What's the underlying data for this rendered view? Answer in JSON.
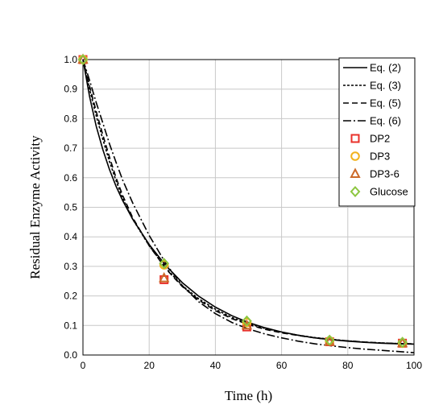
{
  "chart_data": {
    "type": "line",
    "xlabel": "Time (h)",
    "ylabel": "Residual Enzyme Activity",
    "xlim": [
      0,
      100
    ],
    "ylim": [
      0,
      1.0
    ],
    "x_ticks": [
      "0",
      "20",
      "40",
      "60",
      "80",
      "100"
    ],
    "y_ticks": [
      "0.0",
      "0.1",
      "0.2",
      "0.3",
      "0.4",
      "0.5",
      "0.6",
      "0.7",
      "0.8",
      "0.9",
      "1.0"
    ],
    "grid": true,
    "legend_position": "top-right",
    "lines": [
      {
        "name": "Eq. (2)",
        "dash": "solid",
        "x": [
          0,
          2,
          4,
          6,
          8,
          10,
          12,
          15,
          20,
          25,
          30,
          35,
          40,
          45,
          50,
          55,
          60,
          65,
          70,
          75,
          80,
          85,
          90,
          95,
          100
        ],
        "y": [
          1.0,
          0.875,
          0.775,
          0.695,
          0.628,
          0.571,
          0.523,
          0.46,
          0.374,
          0.303,
          0.245,
          0.199,
          0.162,
          0.133,
          0.11,
          0.092,
          0.078,
          0.067,
          0.058,
          0.052,
          0.047,
          0.043,
          0.04,
          0.038,
          0.037
        ]
      },
      {
        "name": "Eq. (3)",
        "dash": "dotted",
        "x": [
          0,
          2,
          4,
          6,
          8,
          10,
          12,
          15,
          20,
          25,
          30,
          35,
          40,
          45,
          50,
          55,
          60,
          65,
          70,
          75,
          80,
          85,
          90,
          95,
          100
        ],
        "y": [
          1.0,
          0.9,
          0.81,
          0.73,
          0.655,
          0.59,
          0.53,
          0.46,
          0.37,
          0.295,
          0.235,
          0.19,
          0.155,
          0.127,
          0.106,
          0.09,
          0.077,
          0.067,
          0.059,
          0.053,
          0.048,
          0.044,
          0.041,
          0.039,
          0.037
        ]
      },
      {
        "name": "Eq. (5)",
        "dash": "dashed",
        "x": [
          0,
          2,
          4,
          6,
          8,
          10,
          12,
          15,
          20,
          25,
          30,
          35,
          40,
          45,
          50,
          55,
          60,
          65,
          70,
          75,
          80,
          85,
          90,
          95,
          100
        ],
        "y": [
          1.0,
          0.91,
          0.825,
          0.745,
          0.67,
          0.6,
          0.54,
          0.465,
          0.37,
          0.292,
          0.232,
          0.186,
          0.15,
          0.123,
          0.103,
          0.087,
          0.075,
          0.066,
          0.058,
          0.052,
          0.048,
          0.044,
          0.041,
          0.039,
          0.038
        ]
      },
      {
        "name": "Eq. (6)",
        "dash": "dashdot",
        "x": [
          0,
          2,
          4,
          6,
          8,
          10,
          12,
          15,
          20,
          25,
          30,
          35,
          40,
          45,
          50,
          55,
          60,
          65,
          70,
          75,
          80,
          85,
          90,
          95,
          100
        ],
        "y": [
          1.0,
          0.93,
          0.855,
          0.785,
          0.715,
          0.652,
          0.592,
          0.515,
          0.405,
          0.31,
          0.235,
          0.18,
          0.14,
          0.11,
          0.088,
          0.071,
          0.058,
          0.047,
          0.038,
          0.031,
          0.025,
          0.02,
          0.016,
          0.012,
          0.008
        ]
      }
    ],
    "markers": [
      {
        "name": "DP2",
        "shape": "square",
        "color": "#e8302a",
        "x": [
          0,
          24.5,
          49.5,
          74.5,
          96.5
        ],
        "y": [
          1.0,
          0.255,
          0.095,
          0.045,
          0.04
        ]
      },
      {
        "name": "DP3",
        "shape": "circle",
        "color": "#f2b21c",
        "x": [
          0,
          24.5,
          49.5,
          74.5,
          96.5
        ],
        "y": [
          1.0,
          0.305,
          0.11,
          0.048,
          0.04
        ]
      },
      {
        "name": "DP3-6",
        "shape": "triangle",
        "color": "#cc6a2a",
        "x": [
          0,
          24.5,
          49.5,
          74.5,
          96.5
        ],
        "y": [
          1.0,
          0.26,
          0.1,
          0.045,
          0.04
        ]
      },
      {
        "name": "Glucose",
        "shape": "diamond",
        "color": "#8cc63f",
        "x": [
          0,
          24.5,
          49.5,
          74.5,
          96.5
        ],
        "y": [
          1.0,
          0.31,
          0.115,
          0.05,
          0.043
        ]
      }
    ]
  }
}
